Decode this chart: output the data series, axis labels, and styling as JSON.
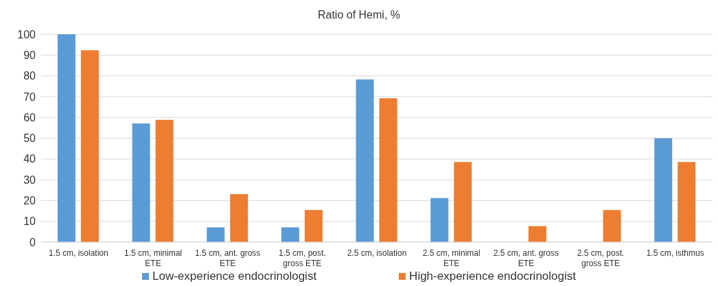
{
  "chart_data": {
    "type": "bar",
    "title": "Ratio of Hemi, %",
    "categories": [
      "1.5 cm, isolation",
      "1.5 cm, minimal ETE",
      "1.5 cm, ant. gross ETE",
      "1.5 cm, post. gross ETE",
      "2.5 cm, isolation",
      "2.5 cm, minimal ETE",
      "2.5 cm, ant. gross ETE",
      "2.5 cm, post. gross ETE",
      "1.5 cm, isthmus"
    ],
    "series": [
      {
        "name": "Low-experience endocrinologist",
        "color": "#5b9bd5",
        "values": [
          100,
          57.1,
          7.1,
          7.1,
          78.3,
          21.2,
          0,
          0,
          50
        ]
      },
      {
        "name": "High-experience endocrinologist",
        "color": "#ed7d31",
        "values": [
          92.3,
          58.8,
          23.1,
          15.4,
          69.2,
          38.5,
          7.7,
          15.4,
          38.5
        ]
      }
    ],
    "ylim": [
      0,
      100
    ],
    "yticks": [
      0,
      10,
      20,
      30,
      40,
      50,
      60,
      70,
      80,
      90,
      100
    ],
    "grid": "y",
    "legend": "bottom"
  }
}
